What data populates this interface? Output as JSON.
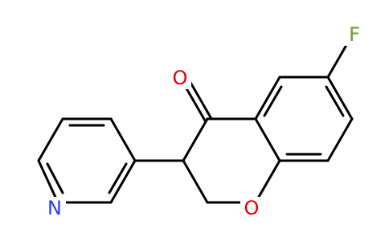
{
  "atoms": [
    {
      "label": "F"
    },
    {
      "label": "O"
    },
    {
      "label": "O"
    },
    {
      "label": "N"
    }
  ]
}
